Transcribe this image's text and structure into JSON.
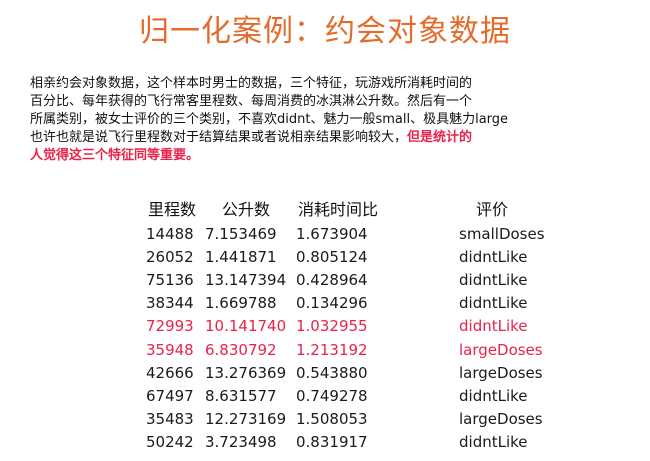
{
  "title": "归一化案例：约会对象数据",
  "intro": {
    "lines": [
      "相亲约会对象数据，这个样本时男士的数据，三个特征，玩游戏所消耗时间的",
      "百分比、每年获得的飞行常客里程数、每周消费的冰淇淋公升数。然后有一个",
      "所属类别，被女士评价的三个类别，不喜欢didnt、魅力一般small、极具魅力large",
      "也许也就是说飞行里程数对于结算结果或者说相亲结果影响较大，"
    ],
    "highlight_tail": "但是统计的",
    "highlight_line": "人觉得这三个特征同等重要。"
  },
  "table": {
    "headers": [
      "里程数",
      "公升数",
      "消耗时间比",
      "评价"
    ],
    "rows": [
      {
        "miles": "14488",
        "liters": "7.153469",
        "ratio": "1.673904",
        "rating": "smallDoses",
        "highlight": false
      },
      {
        "miles": "26052",
        "liters": "1.441871",
        "ratio": "0.805124",
        "rating": "didntLike",
        "highlight": false
      },
      {
        "miles": "75136",
        "liters": "13.147394",
        "ratio": "0.428964",
        "rating": "didntLike",
        "highlight": false
      },
      {
        "miles": "38344",
        "liters": "1.669788",
        "ratio": "0.134296",
        "rating": "didntLike",
        "highlight": false
      },
      {
        "miles": "72993",
        "liters": "10.141740",
        "ratio": "1.032955",
        "rating": "didntLike",
        "highlight": true
      },
      {
        "miles": "35948",
        "liters": "6.830792",
        "ratio": "1.213192",
        "rating": "largeDoses",
        "highlight": true
      },
      {
        "miles": "42666",
        "liters": "13.276369",
        "ratio": "0.543880",
        "rating": "largeDoses",
        "highlight": false
      },
      {
        "miles": "67497",
        "liters": "8.631577",
        "ratio": "0.749278",
        "rating": "didntLike",
        "highlight": false
      },
      {
        "miles": "35483",
        "liters": "12.273169",
        "ratio": "1.508053",
        "rating": "largeDoses",
        "highlight": false
      },
      {
        "miles": "50242",
        "liters": "3.723498",
        "ratio": "0.831917",
        "rating": "didntLike",
        "highlight": false
      }
    ]
  },
  "colors": {
    "title": "#e36c2b",
    "highlight": "#e8234a",
    "text": "#111111"
  }
}
